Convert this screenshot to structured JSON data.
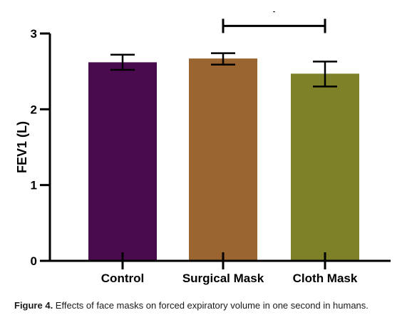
{
  "chart_data": {
    "type": "bar",
    "categories": [
      "Control",
      "Surgical Mask",
      "Cloth Mask"
    ],
    "values": [
      2.62,
      2.67,
      2.47
    ],
    "error": [
      [
        2.52,
        2.72
      ],
      [
        2.59,
        2.74
      ],
      [
        2.3,
        2.63
      ]
    ],
    "colors": [
      "#4a0a4e",
      "#9a6530",
      "#7e8128"
    ],
    "ylabel": "FEV1 (L)",
    "xlabel": "",
    "ylim": [
      0,
      3
    ],
    "yticks": [
      0,
      1,
      2,
      3
    ],
    "grid": false,
    "comparison": {
      "from": "Surgical Mask",
      "to": "Cloth Mask",
      "y": 3.1,
      "label": "-"
    }
  },
  "caption": {
    "label": "Figure 4.",
    "text": " Effects of face masks on forced expiratory volume in one second in humans."
  }
}
